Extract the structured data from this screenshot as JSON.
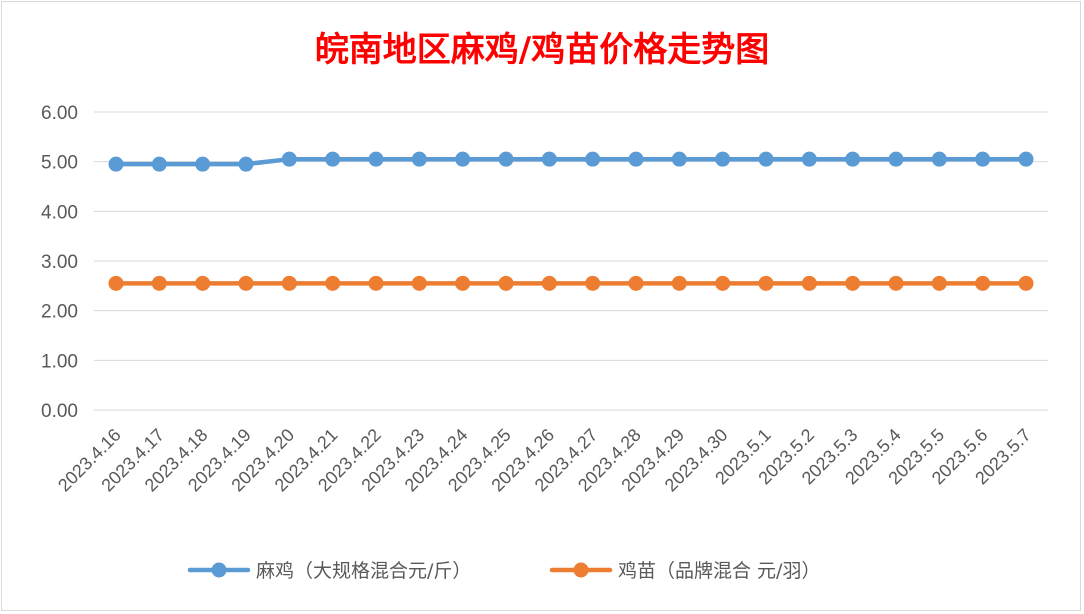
{
  "colors": {
    "series1": "#5b9bd5",
    "series2": "#ed7d31",
    "title": "#ff0000",
    "grid": "#d9d9d9",
    "text": "#595959"
  },
  "chart_data": {
    "type": "line",
    "title": "皖南地区麻鸡/鸡苗价格走势图",
    "categories": [
      "2023.4.16",
      "2023.4.17",
      "2023.4.18",
      "2023.4.19",
      "2023.4.20",
      "2023.4.21",
      "2023.4.22",
      "2023.4.23",
      "2023.4.24",
      "2023.4.25",
      "2023.4.26",
      "2023.4.27",
      "2023.4.28",
      "2023.4.29",
      "2023.4.30",
      "2023.5.1",
      "2023.5.2",
      "2023.5.3",
      "2023.5.4",
      "2023.5.5",
      "2023.5.6",
      "2023.5.7"
    ],
    "series": [
      {
        "name": "麻鸡（大规格混合元/斤）",
        "values": [
          4.95,
          4.95,
          4.95,
          4.95,
          5.05,
          5.05,
          5.05,
          5.05,
          5.05,
          5.05,
          5.05,
          5.05,
          5.05,
          5.05,
          5.05,
          5.05,
          5.05,
          5.05,
          5.05,
          5.05,
          5.05,
          5.05
        ]
      },
      {
        "name": "鸡苗（品牌混合 元/羽）",
        "values": [
          2.55,
          2.55,
          2.55,
          2.55,
          2.55,
          2.55,
          2.55,
          2.55,
          2.55,
          2.55,
          2.55,
          2.55,
          2.55,
          2.55,
          2.55,
          2.55,
          2.55,
          2.55,
          2.55,
          2.55,
          2.55,
          2.55
        ]
      }
    ],
    "yticks": [
      "0.00",
      "1.00",
      "2.00",
      "3.00",
      "4.00",
      "5.00",
      "6.00"
    ],
    "ylim": [
      0,
      6
    ],
    "grid": true,
    "legend_position": "bottom"
  }
}
